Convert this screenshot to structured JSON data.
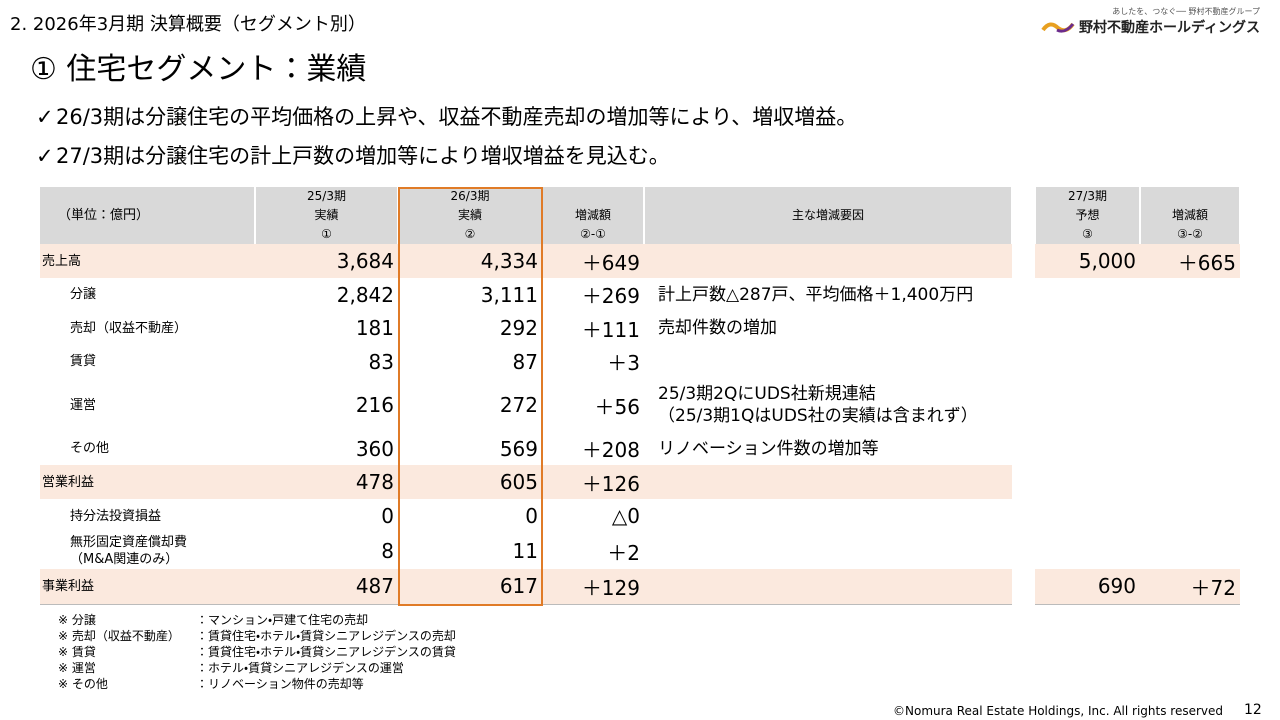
{
  "header": {
    "section": "2. 2026年3月期 決算概要（セグメント別）",
    "logo_tagline": "あしたを、つなぐ── 野村不動産グループ",
    "logo_name": "野村不動産ホールディングス",
    "title": "① 住宅セグメント：業績"
  },
  "bullets": [
    "26/3期は分譲住宅の平均価格の上昇や、収益不動産売却の増加等により、増収増益。",
    "27/3期は分譲住宅の計上戸数の増加等により増収増益を見込む。"
  ],
  "table": {
    "columns": [
      {
        "lines": [
          "（単位：億円）"
        ]
      },
      {
        "lines": [
          "25/3期",
          "実績",
          "①"
        ]
      },
      {
        "lines": [
          "26/3期",
          "実績",
          "②"
        ]
      },
      {
        "lines": [
          "増減額",
          "②-①"
        ]
      },
      {
        "lines": [
          "主な増減要因"
        ]
      },
      {
        "lines": [
          "27/3期",
          "予想",
          "③"
        ]
      },
      {
        "lines": [
          "増減額",
          "③-②"
        ]
      }
    ],
    "rows": [
      {
        "label": [
          "売上高"
        ],
        "highlight": true,
        "indent": false,
        "values": [
          "3,684",
          "4,334",
          "＋649"
        ],
        "forecast": [
          "5,000",
          "＋665"
        ]
      },
      {
        "label": [
          "分譲"
        ],
        "highlight": false,
        "indent": true,
        "values": [
          "2,842",
          "3,111",
          "＋269"
        ],
        "reason": [
          "計上戸数△287戸、平均価格＋1,400万円"
        ]
      },
      {
        "label": [
          "売却（収益不動産）"
        ],
        "highlight": false,
        "indent": true,
        "values": [
          "181",
          "292",
          "＋111"
        ],
        "reason": [
          "売却件数の増加"
        ]
      },
      {
        "label": [
          "賃貸"
        ],
        "highlight": false,
        "indent": true,
        "values": [
          "83",
          "87",
          "＋3"
        ]
      },
      {
        "label": [
          "運営"
        ],
        "highlight": false,
        "indent": true,
        "values": [
          "216",
          "272",
          "＋56"
        ],
        "reason": [
          "25/3期2QにUDS社新規連結",
          "（25/3期1QはUDS社の実績は含まれず）"
        ]
      },
      {
        "label": [
          "その他"
        ],
        "highlight": false,
        "indent": true,
        "values": [
          "360",
          "569",
          "＋208"
        ],
        "reason": [
          "リノベーション件数の増加等"
        ]
      },
      {
        "label": [
          "営業利益"
        ],
        "highlight": true,
        "indent": false,
        "values": [
          "478",
          "605",
          "＋126"
        ]
      },
      {
        "label": [
          "持分法投資損益"
        ],
        "highlight": false,
        "indent": true,
        "values": [
          "0",
          "0",
          "△0"
        ]
      },
      {
        "label": [
          "無形固定資産償却費",
          "（M&A関連のみ）"
        ],
        "highlight": false,
        "indent": true,
        "values": [
          "8",
          "11",
          "＋2"
        ]
      },
      {
        "label": [
          "事業利益"
        ],
        "highlight": true,
        "indent": false,
        "values": [
          "487",
          "617",
          "＋129"
        ],
        "forecast": [
          "690",
          "＋72"
        ]
      }
    ]
  },
  "notes": [
    {
      "term": "※ 分譲",
      "desc": "：マンション・戸建て住宅の売却"
    },
    {
      "term": "※ 売却（収益不動産）",
      "desc": "：賃貸住宅・ホテル・賃貸シニアレジデンスの売却"
    },
    {
      "term": "※ 賃貸",
      "desc": "：賃貸住宅・ホテル・賃貸シニアレジデンスの賃貸"
    },
    {
      "term": "※ 運営",
      "desc": "：ホテル・賃貸シニアレジデンスの運営"
    },
    {
      "term": "※ その他",
      "desc": "：リノベーション物件の売却等"
    }
  ],
  "footer": {
    "copyright": "©Nomura Real Estate Holdings, Inc. All rights reserved",
    "page": "12"
  }
}
